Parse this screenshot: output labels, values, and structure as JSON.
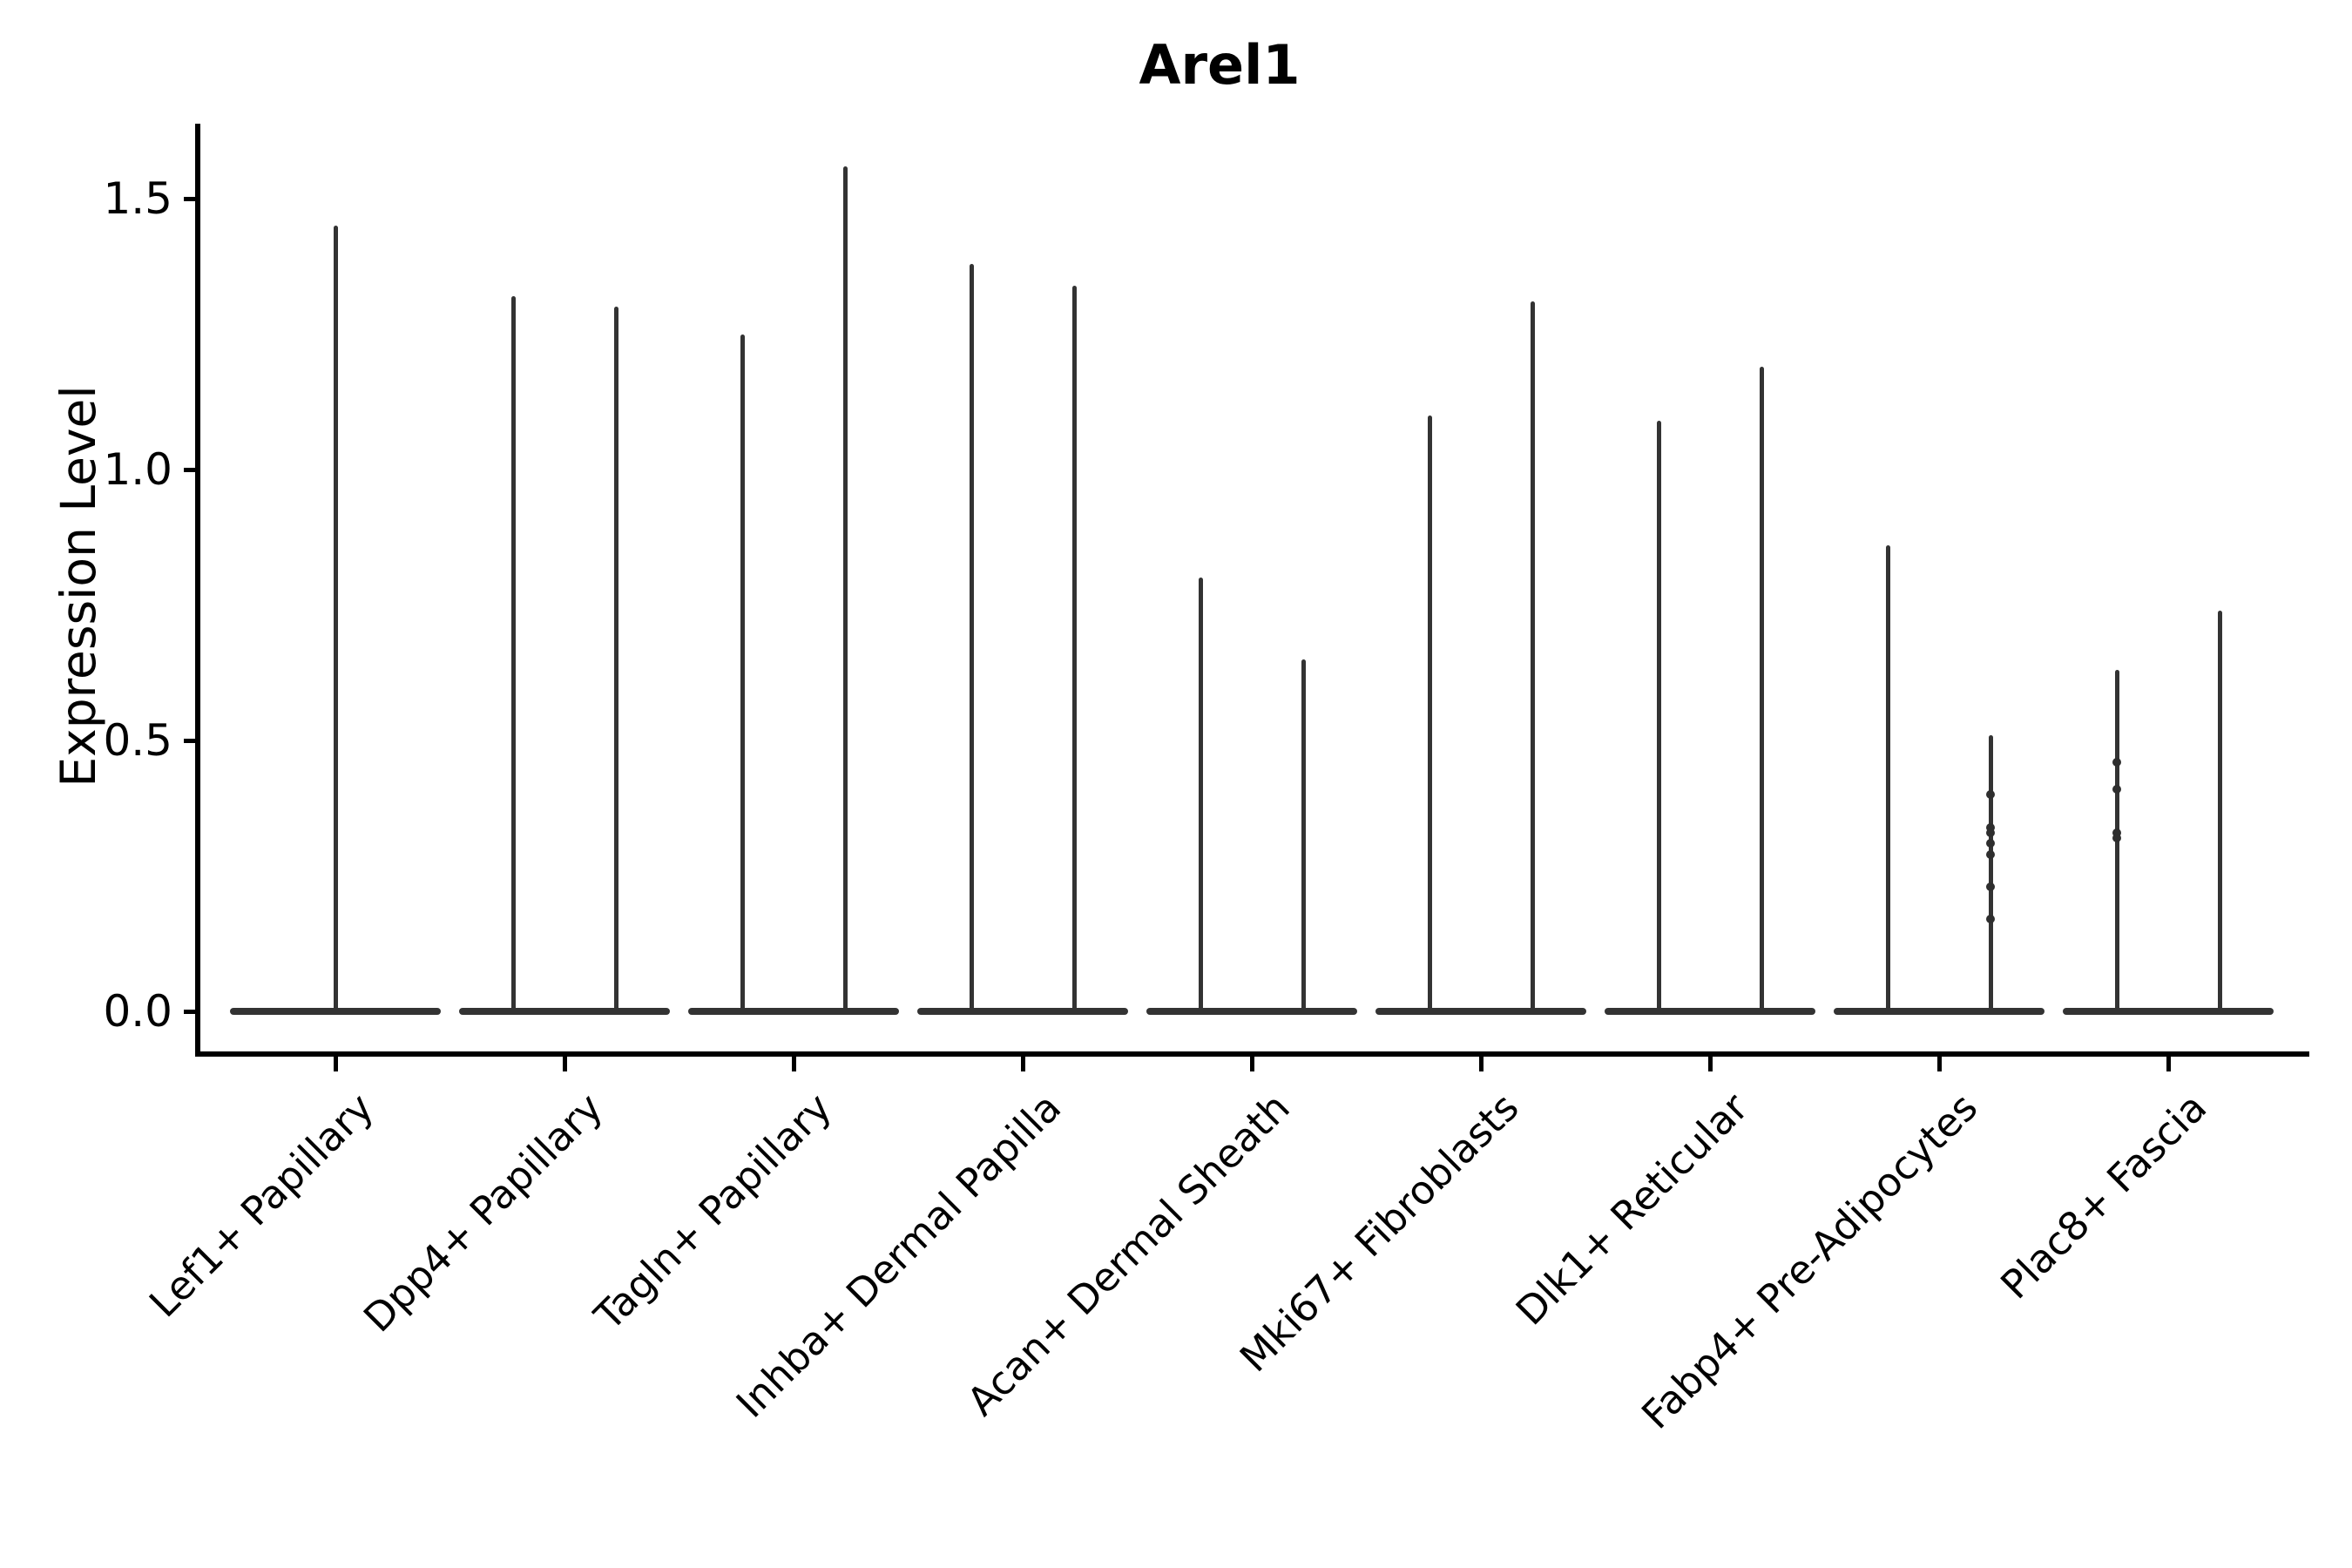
{
  "figure": {
    "title": "Arel1",
    "ylabel": "Expression Level",
    "background_color": "#ffffff",
    "ink_color": "#000000",
    "violin_color": "#333333"
  },
  "chart_data": {
    "type": "violin",
    "title": "Arel1",
    "xlabel": "",
    "ylabel": "Expression Level",
    "ylim": [
      -0.08,
      1.64
    ],
    "yticks": [
      0.0,
      0.5,
      1.0,
      1.5
    ],
    "ytick_labels": [
      "0.0",
      "0.5",
      "1.0",
      "1.5"
    ],
    "grid": false,
    "legend": null,
    "categories": [
      "Lef1+ Papillary",
      "Dpp4+ Papillary",
      "Tagln+ Papillary",
      "Inhba+ Dermal Papilla",
      "Acan+ Dermal Sheath",
      "Mki67+ Fibroblasts",
      "Dlk1+ Reticular",
      "Fabp4+ Pre-Adipocytes",
      "Plac8+ Fascia"
    ],
    "description": "Thin violins with dense mass at 0 and narrow spikes up to the max expression value; most categories show two side-by-side violins, Lef1+ Papillary shows one centered violin.",
    "violins": [
      {
        "category": "Lef1+ Papillary",
        "maxima": [
          1.45
        ]
      },
      {
        "category": "Dpp4+ Papillary",
        "maxima": [
          1.32,
          1.3
        ]
      },
      {
        "category": "Tagln+ Papillary",
        "maxima": [
          1.25,
          1.56
        ]
      },
      {
        "category": "Inhba+ Dermal Papilla",
        "maxima": [
          1.38,
          1.34
        ]
      },
      {
        "category": "Acan+ Dermal Sheath",
        "maxima": [
          0.8,
          0.65
        ]
      },
      {
        "category": "Mki67+ Fibroblasts",
        "maxima": [
          1.1,
          1.31
        ]
      },
      {
        "category": "Dlk1+ Reticular",
        "maxima": [
          1.09,
          1.19
        ]
      },
      {
        "category": "Fabp4+ Pre-Adipocytes",
        "maxima": [
          0.86,
          0.51
        ],
        "visible_points": {
          "1": [
            0.4,
            0.34,
            0.33,
            0.31,
            0.29,
            0.23,
            0.17
          ]
        }
      },
      {
        "category": "Plac8+ Fascia",
        "maxima": [
          0.63,
          0.74
        ],
        "visible_points": {
          "0": [
            0.46,
            0.41,
            0.33,
            0.32
          ]
        }
      }
    ]
  }
}
